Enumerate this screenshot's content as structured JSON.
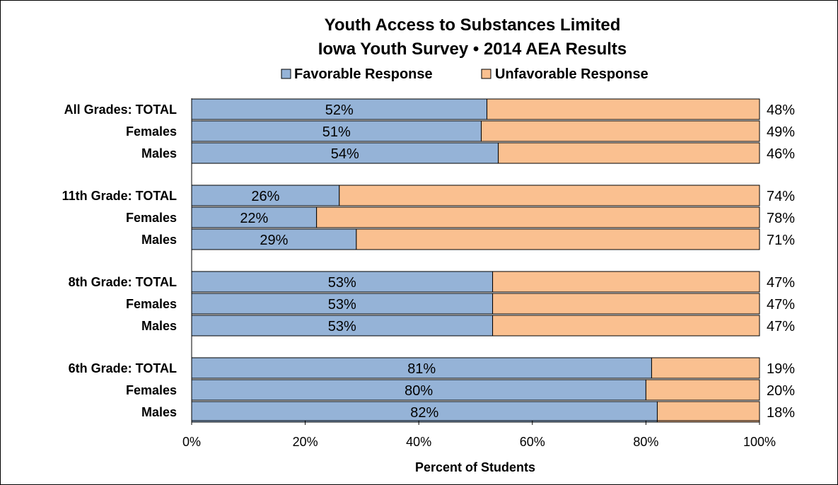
{
  "chart_data": {
    "type": "bar",
    "orientation": "horizontal",
    "stacked": "percent",
    "title": "Youth Access to Substances Limited",
    "subtitle": "Iowa Youth Survey • 2014 AEA Results",
    "xlabel": "Percent of Students",
    "ylabel": "",
    "xlim": [
      0,
      100
    ],
    "x_ticks": [
      "0%",
      "20%",
      "40%",
      "60%",
      "80%",
      "100%"
    ],
    "legend_position": "top",
    "grid": false,
    "groups": [
      {
        "name": "All Grades:  TOTAL",
        "rows": [
          {
            "label": "All Grades:  TOTAL",
            "favorable": 52,
            "unfavorable": 48
          },
          {
            "label": "Females",
            "favorable": 51,
            "unfavorable": 49
          },
          {
            "label": "Males",
            "favorable": 54,
            "unfavorable": 46
          }
        ]
      },
      {
        "name": "11th Grade:  TOTAL",
        "rows": [
          {
            "label": "11th Grade:  TOTAL",
            "favorable": 26,
            "unfavorable": 74
          },
          {
            "label": "Females",
            "favorable": 22,
            "unfavorable": 78
          },
          {
            "label": "Males",
            "favorable": 29,
            "unfavorable": 71
          }
        ]
      },
      {
        "name": "8th Grade:  TOTAL",
        "rows": [
          {
            "label": "8th Grade:  TOTAL",
            "favorable": 53,
            "unfavorable": 47
          },
          {
            "label": "Females",
            "favorable": 53,
            "unfavorable": 47
          },
          {
            "label": "Males",
            "favorable": 53,
            "unfavorable": 47
          }
        ]
      },
      {
        "name": "6th Grade:  TOTAL",
        "rows": [
          {
            "label": "6th Grade:  TOTAL",
            "favorable": 81,
            "unfavorable": 19
          },
          {
            "label": "Females",
            "favorable": 80,
            "unfavorable": 20
          },
          {
            "label": "Males",
            "favorable": 82,
            "unfavorable": 18
          }
        ]
      }
    ],
    "series": [
      {
        "name": "Favorable Response",
        "key": "favorable",
        "color": "#95B3D7"
      },
      {
        "name": "Unfavorable Response",
        "key": "unfavorable",
        "color": "#FAC090"
      }
    ]
  }
}
